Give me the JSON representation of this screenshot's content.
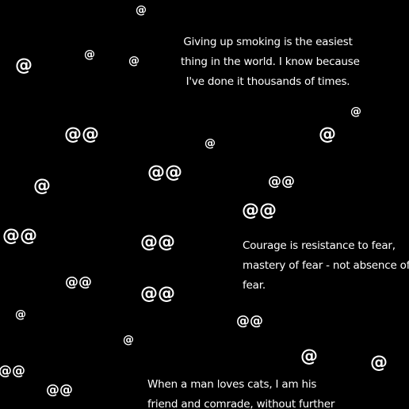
{
  "quotes": {
    "smoking": "Giving up smoking is the easiest\nthing in the world. I know because\nI've done it thousands of times.",
    "courage": "Courage is resistance to fear,\nmastery of fear - not absence of\nfear.",
    "cats": "When a man loves cats, I am his\nfriend and comrade, without further"
  },
  "symbols": {
    "single": "@",
    "double": "@@"
  }
}
